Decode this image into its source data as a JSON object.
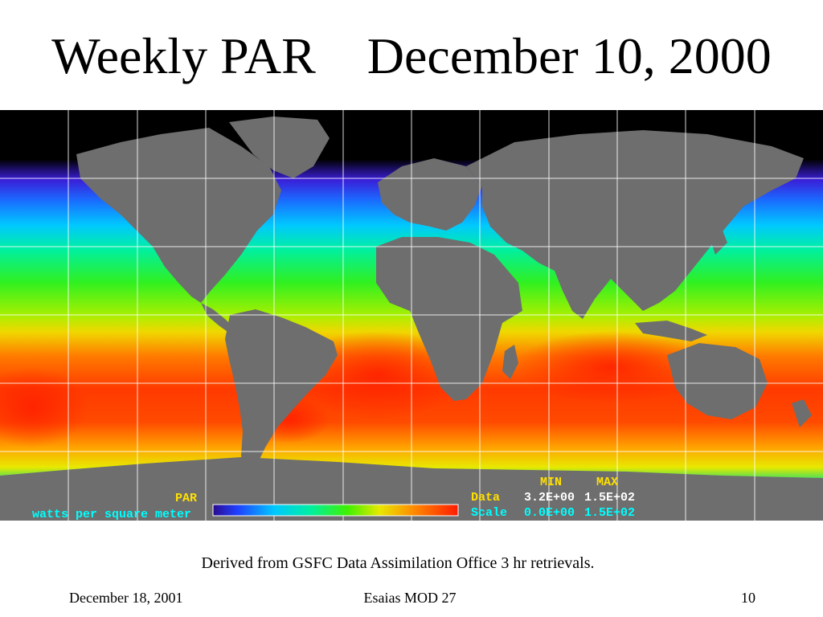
{
  "slide": {
    "title": "Weekly PAR    December 10, 2000",
    "caption": "Derived from GSFC Data Assimilation Office  3 hr retrievals.",
    "footer_left": "December 18, 2001",
    "footer_center": "Esaias  MOD 27",
    "footer_right": "10"
  },
  "map": {
    "variable_label": "PAR",
    "units_label": "watts per square meter",
    "min_header": "MIN",
    "max_header": "MAX",
    "data_label": "Data",
    "data_min": "3.2E+00",
    "data_max": "1.5E+02",
    "scale_label": "Scale",
    "scale_min": "0.0E+00",
    "scale_max": "1.5E+02",
    "colors": {
      "land": "#6e6e6e",
      "no_data": "#000000",
      "grid": "#ffffff",
      "label_yellow": "#ffe000",
      "label_cyan": "#00ffff"
    }
  }
}
